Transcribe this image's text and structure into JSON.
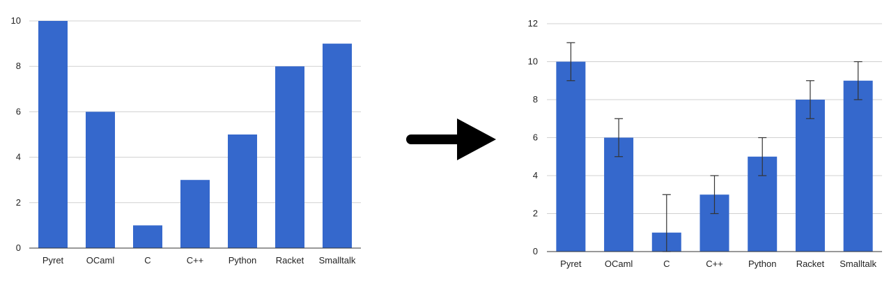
{
  "chart_data": [
    {
      "type": "bar",
      "categories": [
        "Pyret",
        "OCaml",
        "C",
        "C++",
        "Python",
        "Racket",
        "Smalltalk"
      ],
      "values": [
        10,
        6,
        1,
        3,
        5,
        8,
        9
      ],
      "ylim": [
        0,
        10
      ],
      "yticks": [
        0,
        2,
        4,
        6,
        8,
        10
      ],
      "grid": true,
      "bar_color": "#3568cc",
      "error_bars": false
    },
    {
      "type": "bar",
      "categories": [
        "Pyret",
        "OCaml",
        "C",
        "C++",
        "Python",
        "Racket",
        "Smalltalk"
      ],
      "values": [
        10,
        6,
        1,
        3,
        5,
        8,
        9
      ],
      "error_low": [
        9,
        5,
        0,
        2,
        4,
        7,
        8
      ],
      "error_high": [
        11,
        7,
        3,
        4,
        6,
        9,
        10
      ],
      "ylim": [
        0,
        12
      ],
      "yticks": [
        0,
        2,
        4,
        6,
        8,
        10,
        12
      ],
      "grid": true,
      "bar_color": "#3568cc",
      "error_bars": true
    }
  ],
  "arrow": {
    "icon": "right-arrow-icon",
    "color": "#000000"
  }
}
